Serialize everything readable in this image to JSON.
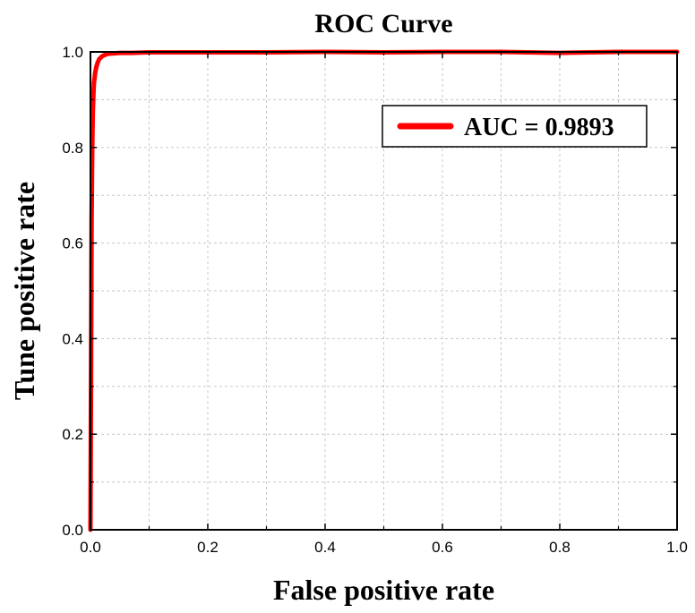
{
  "chart_data": {
    "type": "line",
    "title": "ROC Curve",
    "xlabel": "False positive rate",
    "ylabel": "Tune positive rate",
    "xlim": [
      0,
      1
    ],
    "ylim": [
      0,
      1
    ],
    "x_ticks": [
      "0.0",
      "0.2",
      "0.4",
      "0.6",
      "0.8",
      "1.0"
    ],
    "y_ticks": [
      "0.0",
      "0.2",
      "0.4",
      "0.6",
      "0.8",
      "1.0"
    ],
    "grid": true,
    "legend_position": "top-right",
    "series": [
      {
        "name": "AUC = 0.9893",
        "color": "#ff0000",
        "x": [
          0.0,
          0.001,
          0.002,
          0.003,
          0.004,
          0.005,
          0.006,
          0.008,
          0.01,
          0.012,
          0.015,
          0.02,
          0.025,
          0.03,
          0.04,
          0.05,
          0.07,
          0.1,
          0.15,
          0.2,
          0.3,
          0.4,
          0.5,
          0.6,
          0.7,
          0.8,
          0.9,
          1.0
        ],
        "y": [
          0.0,
          0.35,
          0.65,
          0.8,
          0.87,
          0.91,
          0.935,
          0.955,
          0.968,
          0.977,
          0.985,
          0.991,
          0.994,
          0.996,
          0.997,
          0.998,
          0.998,
          0.999,
          0.999,
          0.999,
          0.999,
          1.0,
          0.999,
          1.0,
          1.0,
          0.998,
          1.0,
          1.0
        ]
      }
    ]
  }
}
